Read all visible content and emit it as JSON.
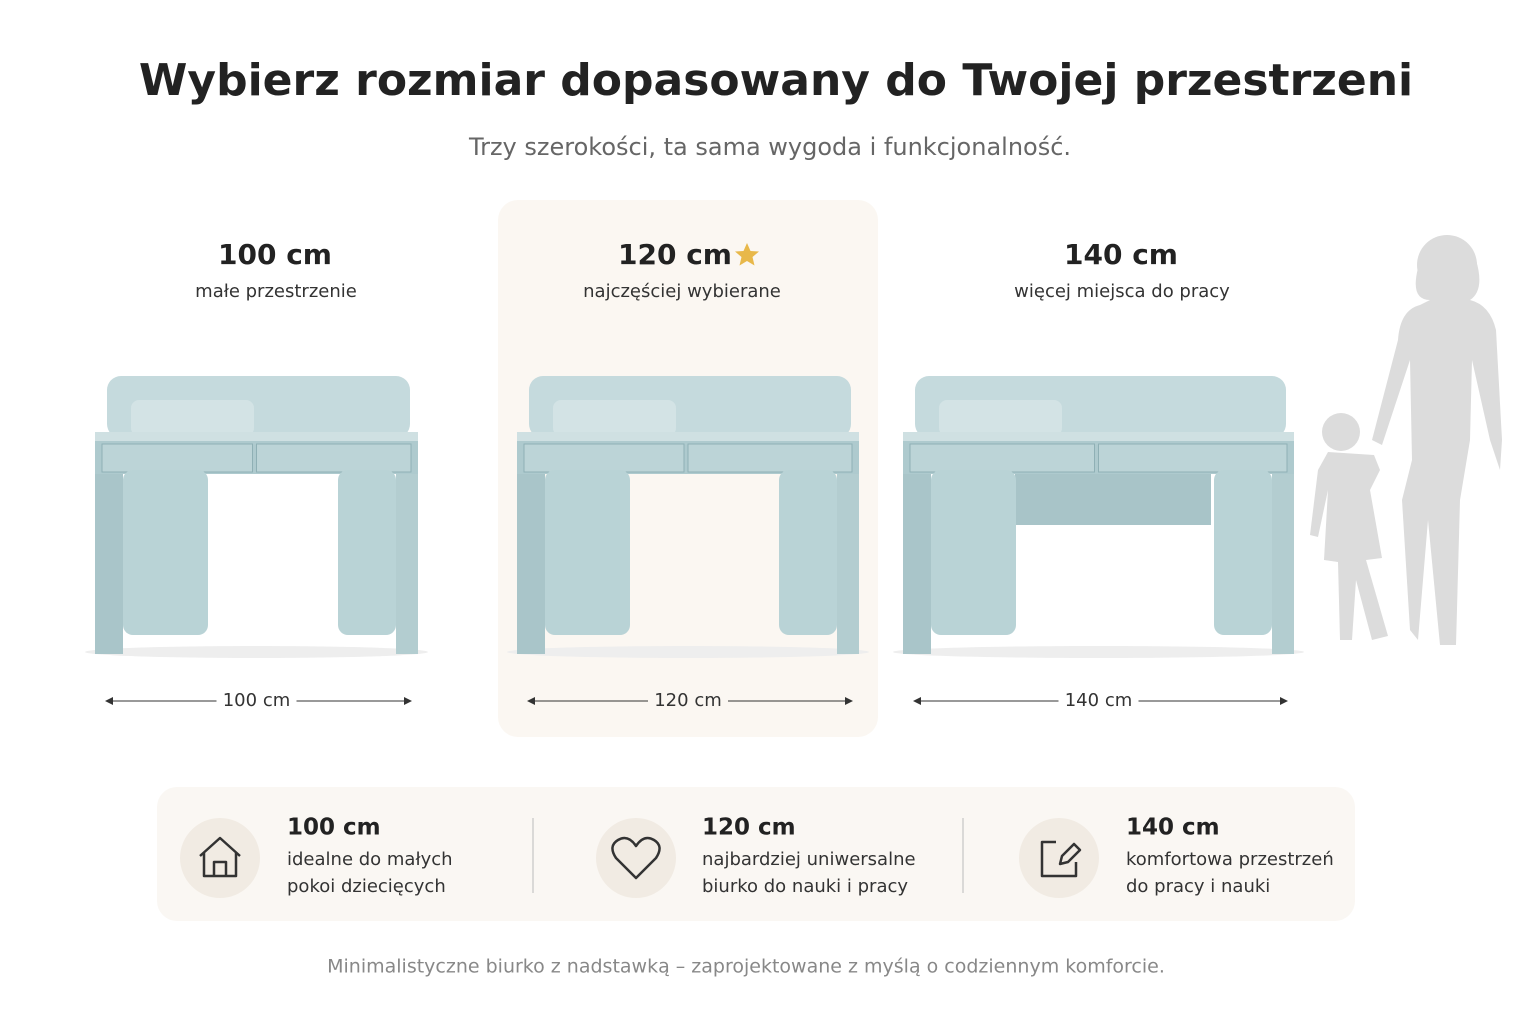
{
  "header": {
    "title": "Wybierz rozmiar dopasowany do Twojej przestrzeni",
    "subtitle": "Trzy szerokości, ta sama wygoda i funkcjonalność."
  },
  "sizes": [
    {
      "label": "100 cm",
      "caption": "małe przestrzenie",
      "dimension": "100 cm"
    },
    {
      "label": "120 cm",
      "caption": "najczęściej wybierane",
      "dimension": "120 cm"
    },
    {
      "label": "140 cm",
      "caption": "więcej miejsca do pracy",
      "dimension": "140 cm"
    }
  ],
  "features": [
    {
      "title": "100 cm",
      "lines": [
        "idealne do małych",
        "pokoi dziecięcych"
      ]
    },
    {
      "title": "120 cm",
      "lines": [
        "najbardziej uniwersalne",
        "biurko do nauki i pracy"
      ]
    },
    {
      "title": "140 cm",
      "lines": [
        "komfortowa przestrzeń",
        "do pracy i nauki"
      ]
    }
  ],
  "footer": "Minimalistyczne biurko z nadstawką – zaprojektowane z myślą o codziennym komforcie."
}
